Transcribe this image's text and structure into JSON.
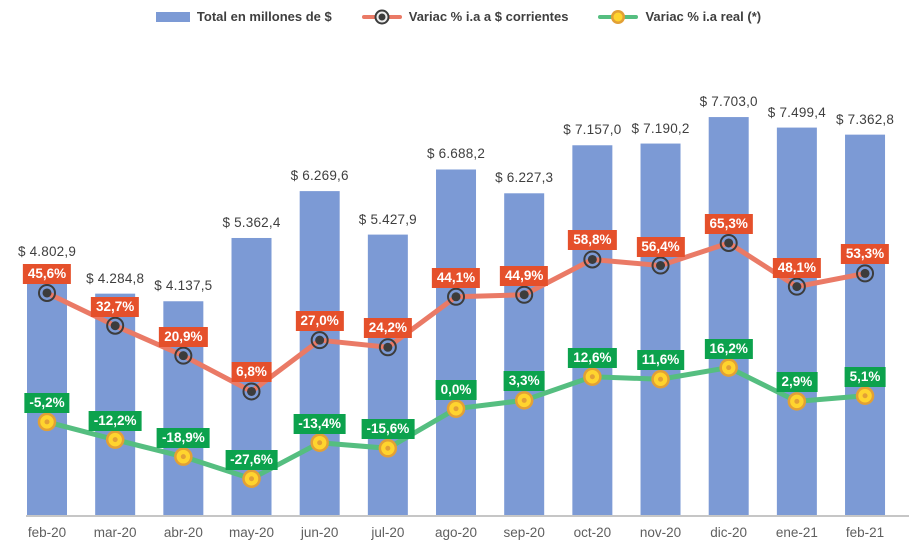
{
  "legend": {
    "total_label": "Total en millones de $",
    "corrientes_label": "Variac % i.a a $ corrientes",
    "real_label": "Variac % i.a real (*)"
  },
  "colors": {
    "background": "#FFFFFF",
    "bar": "#7C9AD5",
    "red_line": "#EA7A66",
    "red_label_bg": "#E5502B",
    "marker_dark": "#3C3C3C",
    "green_line": "#55BE80",
    "green_label_bg": "#0CA24D",
    "yellow_marker_fill": "#FFD42E",
    "yellow_marker_ring": "#E2A036",
    "axis_line": "#C6C6C6",
    "bar_value_text": "#3F3F3F",
    "x_label_text": "#5F5F5F",
    "legend_text": "#3F3F3F"
  },
  "chart_data": {
    "type": "bar",
    "subtype": "bar-with-two-lines",
    "title": "",
    "xlabel": "",
    "ylabel": "",
    "grid": false,
    "legend_position": "top",
    "categories": [
      "feb-20",
      "mar-20",
      "abr-20",
      "may-20",
      "jun-20",
      "jul-20",
      "ago-20",
      "sep-20",
      "oct-20",
      "nov-20",
      "dic-20",
      "ene-21",
      "feb-21"
    ],
    "primary_axis": {
      "min": 0,
      "implied_max": 8000,
      "units": "millones de $",
      "visible": false
    },
    "secondary_axis": {
      "implied_min": -40,
      "implied_max": 80,
      "units": "%",
      "visible": false
    },
    "series": [
      {
        "name": "Total en millones de $",
        "type": "bar",
        "axis": "primary",
        "values": [
          4802.9,
          4284.8,
          4137.5,
          5362.4,
          6269.6,
          5427.9,
          6688.2,
          6227.3,
          7157.0,
          7190.2,
          7703.0,
          7499.4,
          7362.8
        ],
        "labels": [
          "$ 4.802,9",
          "$ 4.284,8",
          "$ 4.137,5",
          "$ 5.362,4",
          "$ 6.269,6",
          "$ 5.427,9",
          "$ 6.688,2",
          "$ 6.227,3",
          "$ 7.157,0",
          "$ 7.190,2",
          "$ 7.703,0",
          "$ 7.499,4",
          "$ 7.362,8"
        ]
      },
      {
        "name": "Variac % i.a a $ corrientes",
        "type": "line",
        "axis": "secondary",
        "values": [
          45.6,
          32.7,
          20.9,
          6.8,
          27.0,
          24.2,
          44.1,
          44.9,
          58.8,
          56.4,
          65.3,
          48.1,
          53.3
        ],
        "labels": [
          "45,6%",
          "32,7%",
          "20,9%",
          "6,8%",
          "27,0%",
          "24,2%",
          "44,1%",
          "44,9%",
          "58,8%",
          "56,4%",
          "65,3%",
          "48,1%",
          "53,3%"
        ]
      },
      {
        "name": "Variac % i.a real (*)",
        "type": "line",
        "axis": "secondary",
        "values": [
          -5.2,
          -12.2,
          -18.9,
          -27.6,
          -13.4,
          -15.6,
          0.0,
          3.3,
          12.6,
          11.6,
          16.2,
          2.9,
          5.1
        ],
        "labels": [
          "-5,2%",
          "-12,2%",
          "-18,9%",
          "-27,6%",
          "-13,4%",
          "-15,6%",
          "0,0%",
          "3,3%",
          "12,6%",
          "11,6%",
          "16,2%",
          "2,9%",
          "5,1%"
        ]
      }
    ]
  }
}
